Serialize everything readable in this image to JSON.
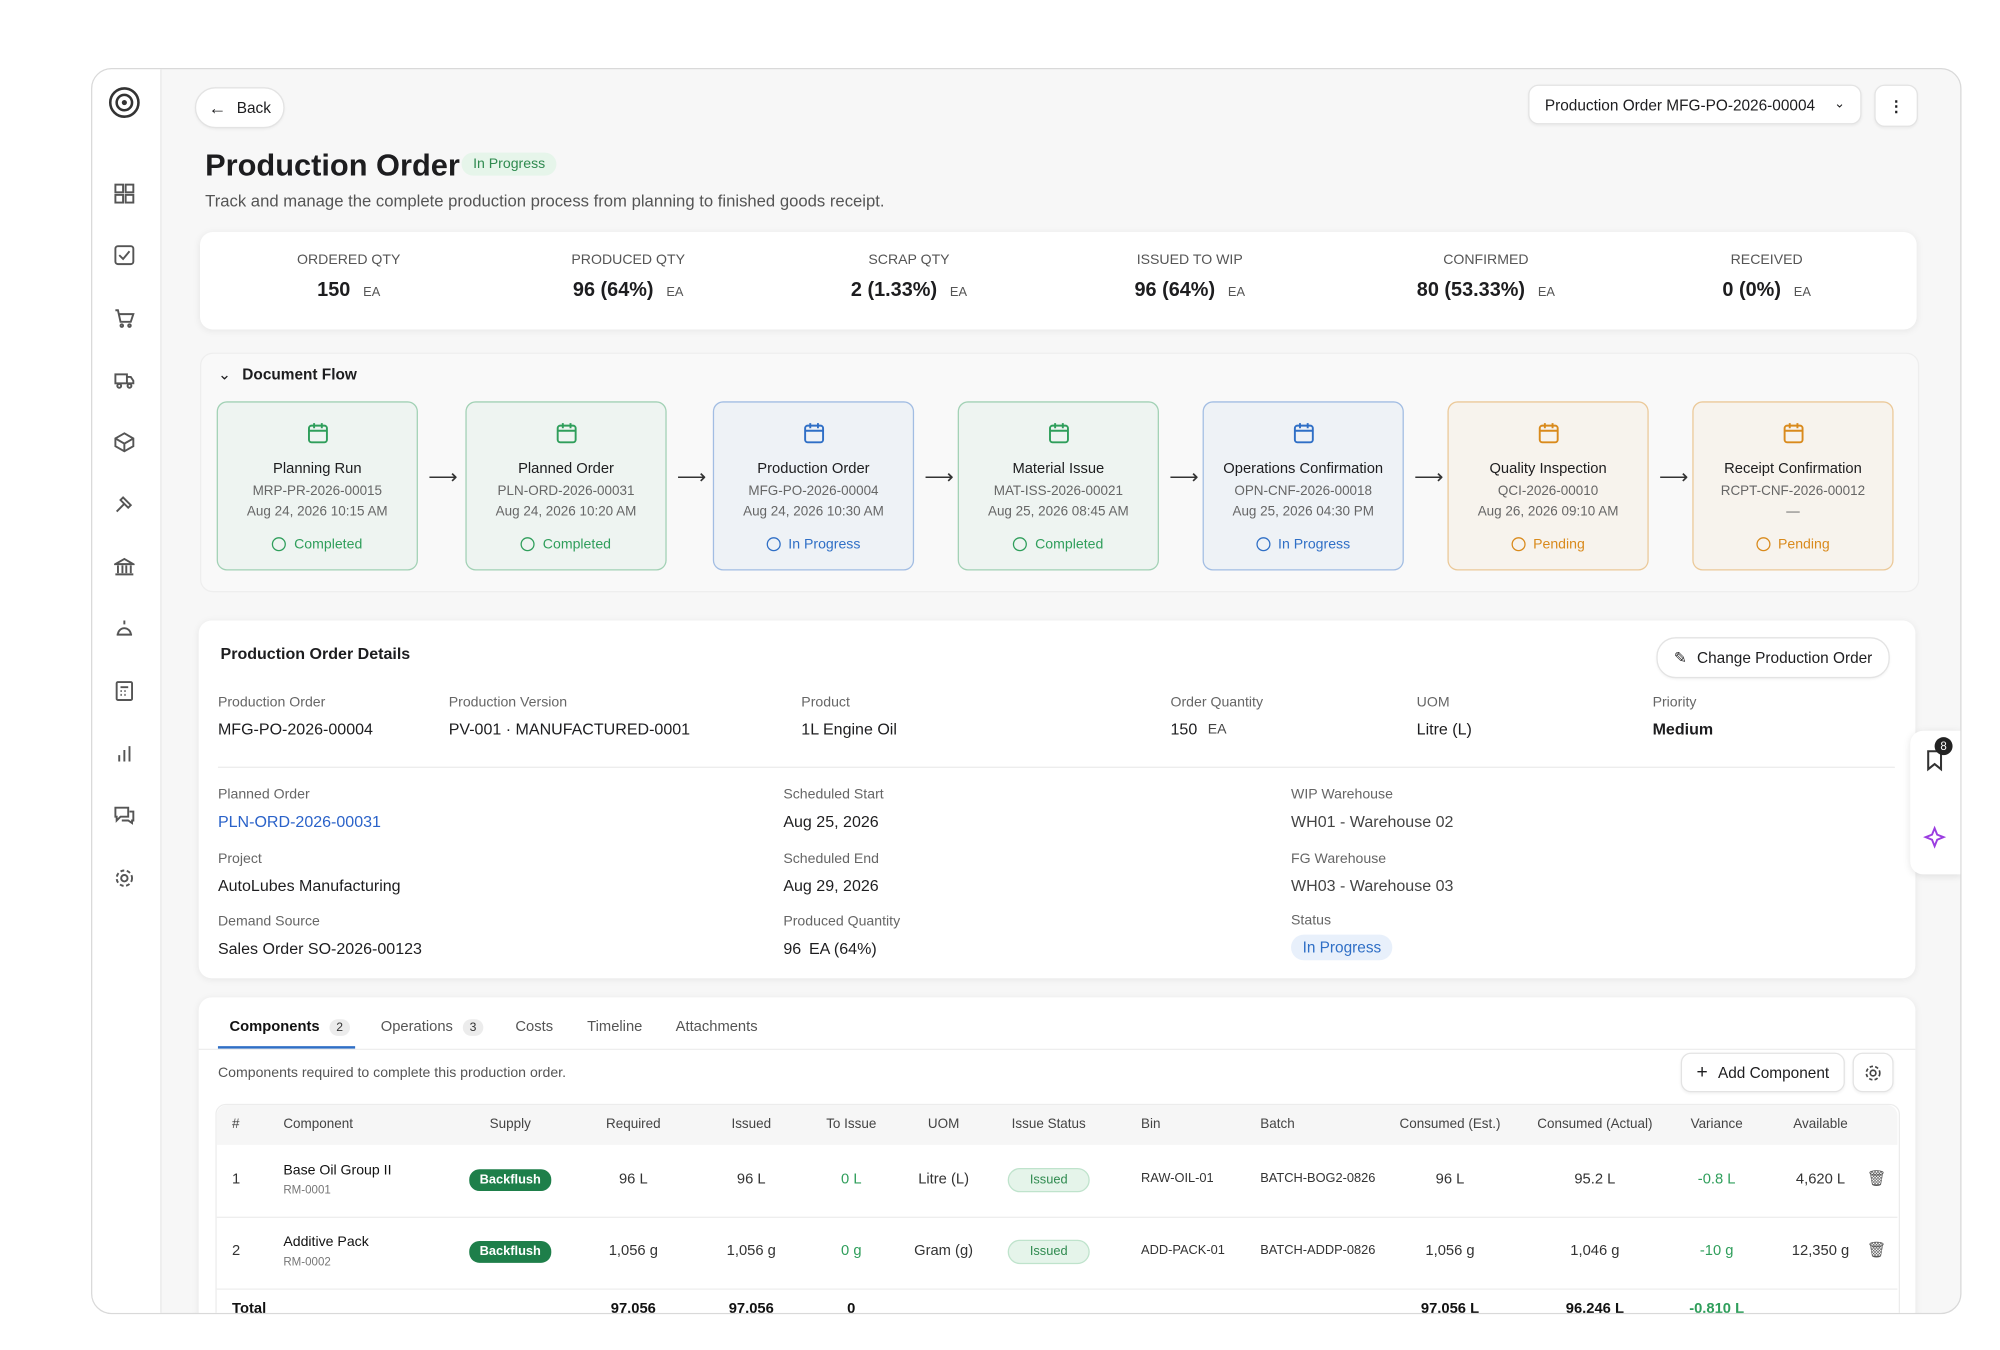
{
  "app": {
    "back": "Back",
    "order_selector": "Production Order MFG-PO-2026-00004",
    "notification_count": "8"
  },
  "header": {
    "title": "Production Order",
    "status": "In Progress",
    "subtitle": "Track and manage the complete production process from planning to finished goods receipt."
  },
  "kpis": [
    {
      "label": "ORDERED QTY",
      "value": "150",
      "unit": "EA"
    },
    {
      "label": "PRODUCED QTY",
      "value": "96 (64%)",
      "unit": "EA"
    },
    {
      "label": "SCRAP QTY",
      "value": "2 (1.33%)",
      "unit": "EA"
    },
    {
      "label": "ISSUED TO WIP",
      "value": "96 (64%)",
      "unit": "EA"
    },
    {
      "label": "CONFIRMED",
      "value": "80 (53.33%)",
      "unit": "EA"
    },
    {
      "label": "RECEIVED",
      "value": "0 (0%)",
      "unit": "EA"
    }
  ],
  "document_flow": {
    "title": "Document Flow",
    "steps": [
      {
        "title": "Planning Run",
        "id": "MRP-PR-2026-00015",
        "date": "Aug 24, 2026 10:15 AM",
        "status": "Completed",
        "color": "#2f9e5b"
      },
      {
        "title": "Planned Order",
        "id": "PLN-ORD-2026-00031",
        "date": "Aug 24, 2026 10:20 AM",
        "status": "Completed",
        "color": "#2f9e5b"
      },
      {
        "title": "Production Order",
        "id": "MFG-PO-2026-00004",
        "date": "Aug 24, 2026 10:30 AM",
        "status": "In Progress",
        "color": "#2f6fc6"
      },
      {
        "title": "Material Issue",
        "id": "MAT-ISS-2026-00021",
        "date": "Aug 25, 2026 08:45 AM",
        "status": "Completed",
        "color": "#2f9e5b"
      },
      {
        "title": "Operations Confirmation",
        "id": "OPN-CNF-2026-00018",
        "date": "Aug 25, 2026 04:30 PM",
        "status": "In Progress",
        "color": "#2f6fc6"
      },
      {
        "title": "Quality Inspection",
        "id": "QCI-2026-00010",
        "date": "Aug 26, 2026 09:10 AM",
        "status": "Pending",
        "color": "#d98a1c"
      },
      {
        "title": "Receipt Confirmation",
        "id": "RCPT-CNF-2026-00012",
        "date": "—",
        "status": "Pending",
        "color": "#d98a1c"
      }
    ]
  },
  "details": {
    "title": "Production Order Details",
    "action": "Change Production Order",
    "production_order": {
      "label": "Production Order",
      "value": "MFG-PO-2026-00004"
    },
    "production_version": {
      "label": "Production Version",
      "value": "PV-001 · MANUFACTURED-0001"
    },
    "product": {
      "label": "Product",
      "value": "1L Engine Oil"
    },
    "order_quantity": {
      "label": "Order Quantity",
      "value": "150",
      "unit": "EA"
    },
    "uom": {
      "label": "UOM",
      "value": "Litre (L)"
    },
    "priority": {
      "label": "Priority",
      "value": "Medium"
    },
    "planned_order": {
      "label": "Planned Order",
      "value": "PLN-ORD-2026-00031"
    },
    "project": {
      "label": "Project",
      "value": "AutoLubes Manufacturing"
    },
    "demand_source": {
      "label": "Demand Source",
      "value": "Sales Order SO-2026-00123"
    },
    "scheduled_start": {
      "label": "Scheduled Start",
      "value": "Aug 25, 2026"
    },
    "scheduled_end": {
      "label": "Scheduled End",
      "value": "Aug 29, 2026"
    },
    "produced_quantity": {
      "label": "Produced Quantity",
      "value": "96",
      "unit": "EA (64%)"
    },
    "wip_warehouse": {
      "label": "WIP Warehouse",
      "value": "WH01 - Warehouse 02"
    },
    "fg_warehouse": {
      "label": "FG Warehouse",
      "value": "WH03 - Warehouse 03"
    },
    "status": {
      "label": "Status",
      "value": "In Progress"
    }
  },
  "tabs": {
    "items": [
      {
        "label": "Components",
        "count": "2"
      },
      {
        "label": "Operations",
        "count": "3"
      },
      {
        "label": "Costs"
      },
      {
        "label": "Timeline"
      },
      {
        "label": "Attachments"
      }
    ],
    "description": "Components required to complete this production order.",
    "action": "Add Component"
  },
  "table": {
    "columns": [
      "#",
      "Component",
      "Supply",
      "Required",
      "Issued",
      "To Issue",
      "UOM",
      "Issue Status",
      "Bin",
      "Batch",
      "Consumed (Est.)",
      "Consumed (Actual)",
      "Variance",
      "Available"
    ],
    "rows": [
      {
        "cells": [
          "1",
          "Base Oil Group II",
          "Backflush",
          "96 L",
          "96 L",
          "0 L",
          "Litre (L)",
          "Issued",
          "RAW-OIL-01",
          "BATCH-BOG2-0826",
          "96 L",
          "95.2 L",
          "-0.8 L",
          "4,620 L"
        ],
        "code": "RM-0001"
      },
      {
        "cells": [
          "2",
          "Additive Pack",
          "Backflush",
          "1,056 g",
          "1,056 g",
          "0 g",
          "Gram (g)",
          "Issued",
          "ADD-PACK-01",
          "BATCH-ADDP-0826",
          "1,056 g",
          "1,046 g",
          "-10 g",
          "12,350 g"
        ],
        "code": "RM-0002"
      }
    ],
    "total": [
      "Total",
      null,
      null,
      "97,056",
      "97,056",
      "0",
      null,
      null,
      null,
      null,
      "97,056 L",
      "96,246 L",
      "-0.810 L",
      null
    ]
  }
}
